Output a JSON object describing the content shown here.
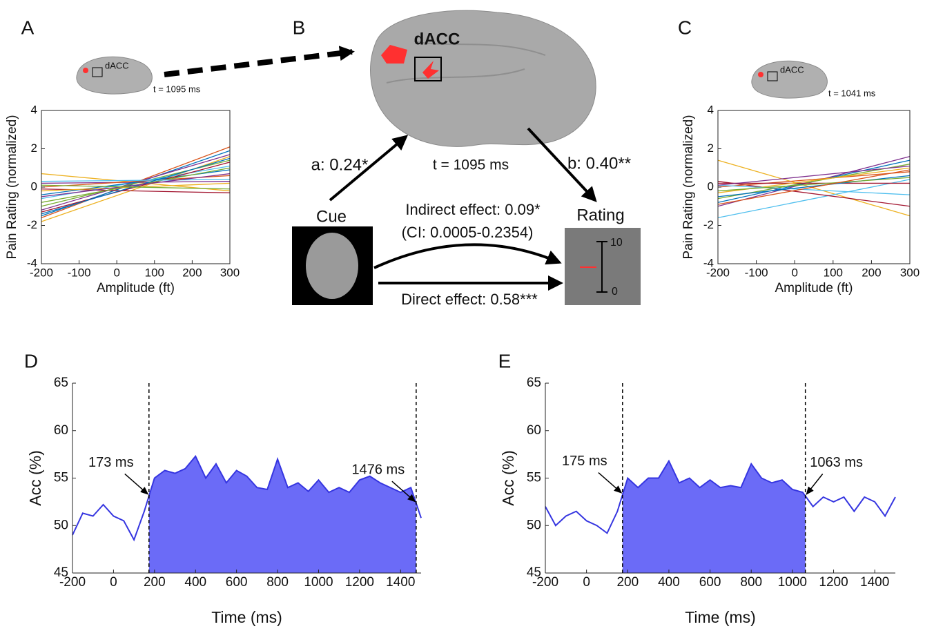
{
  "panels": [
    "A",
    "B",
    "C",
    "D",
    "E"
  ],
  "diagram": {
    "region": "dACC",
    "path_a": "a: 0.24*",
    "time": "t = 1095 ms",
    "path_b": "b: 0.40**",
    "cue": "Cue",
    "rating": "Rating",
    "indirect": "Indirect effect: 0.09*",
    "ci": "(CI: 0.0005-0.2354)",
    "direct": "Direct effect: 0.58***",
    "scale_top": "10",
    "scale_bottom": "0"
  },
  "chart_data": [
    {
      "type": "line",
      "xlabel": "Amplitude (ft)",
      "ylabel": "Pain Rating (normalized)",
      "inset_label": "dACC",
      "inset_time": "t = 1095 ms",
      "x": [
        -200,
        300
      ],
      "xlim": [
        -200,
        300
      ],
      "ylim": [
        -4,
        4
      ],
      "xticks": [
        -200,
        -100,
        0,
        100,
        200,
        300
      ],
      "yticks": [
        -4,
        -2,
        0,
        2,
        4
      ],
      "box": true,
      "series": [
        {
          "color": "#D95319",
          "values": [
            -1.6,
            2.1
          ]
        },
        {
          "color": "#0072BD",
          "values": [
            -1.5,
            1.9
          ]
        },
        {
          "color": "#EDB120",
          "values": [
            -1.8,
            1.6
          ]
        },
        {
          "color": "#EDB120",
          "values": [
            0.7,
            -0.2
          ]
        },
        {
          "color": "#7E2F8E",
          "values": [
            -1.2,
            1.7
          ]
        },
        {
          "color": "#77AC30",
          "values": [
            -1.0,
            1.4
          ]
        },
        {
          "color": "#4DBEEE",
          "values": [
            -0.6,
            1.1
          ]
        },
        {
          "color": "#7E2F8E",
          "values": [
            0.2,
            0.3
          ]
        },
        {
          "color": "#A2142F",
          "values": [
            -0.1,
            -0.3
          ]
        },
        {
          "color": "#0072BD",
          "values": [
            -0.4,
            0.9
          ]
        },
        {
          "color": "#D95319",
          "values": [
            0.0,
            0.6
          ]
        },
        {
          "color": "#A2142F",
          "values": [
            -1.3,
            1.3
          ]
        },
        {
          "color": "#77AC30",
          "values": [
            -0.8,
            1.0
          ]
        },
        {
          "color": "#EDB120",
          "values": [
            -0.2,
            0.2
          ]
        },
        {
          "color": "#4DBEEE",
          "values": [
            0.3,
            0.4
          ]
        },
        {
          "color": "#0072BD",
          "values": [
            -1.4,
            1.5
          ]
        },
        {
          "color": "#7E2F8E",
          "values": [
            -0.5,
            0.7
          ]
        },
        {
          "color": "#77AC30",
          "values": [
            0.1,
            -0.1
          ]
        }
      ]
    },
    {
      "type": "line",
      "xlabel": "Amplitude (ft)",
      "ylabel": "Pain Rating (normalized)",
      "inset_label": "dACC",
      "inset_time": "t = 1041 ms",
      "x": [
        -200,
        300
      ],
      "xlim": [
        -200,
        300
      ],
      "ylim": [
        -4,
        4
      ],
      "xticks": [
        -200,
        -100,
        0,
        100,
        200,
        300
      ],
      "yticks": [
        -4,
        -2,
        0,
        2,
        4
      ],
      "box": true,
      "series": [
        {
          "color": "#EDB120",
          "values": [
            1.4,
            -1.5
          ]
        },
        {
          "color": "#4DBEEE",
          "values": [
            -1.6,
            0.4
          ]
        },
        {
          "color": "#A2142F",
          "values": [
            0.3,
            -1.0
          ]
        },
        {
          "color": "#7E2F8E",
          "values": [
            -1.0,
            1.6
          ]
        },
        {
          "color": "#0072BD",
          "values": [
            -0.8,
            1.4
          ]
        },
        {
          "color": "#77AC30",
          "values": [
            -0.6,
            1.2
          ]
        },
        {
          "color": "#D95319",
          "values": [
            0.0,
            0.8
          ]
        },
        {
          "color": "#A2142F",
          "values": [
            0.2,
            0.2
          ]
        },
        {
          "color": "#EDB120",
          "values": [
            -0.3,
            1.0
          ]
        },
        {
          "color": "#4DBEEE",
          "values": [
            0.1,
            -0.4
          ]
        },
        {
          "color": "#0072BD",
          "values": [
            -0.5,
            0.6
          ]
        },
        {
          "color": "#7E2F8E",
          "values": [
            0.1,
            1.1
          ]
        },
        {
          "color": "#77AC30",
          "values": [
            -0.2,
            0.5
          ]
        },
        {
          "color": "#D95319",
          "values": [
            -0.9,
            0.9
          ]
        }
      ]
    },
    {
      "type": "area",
      "xlabel": "Time (ms)",
      "ylabel": "Acc (%)",
      "box": false,
      "shade_color": "#6b6bf7",
      "x": [
        -200,
        -150,
        -100,
        -50,
        0,
        50,
        100,
        150,
        200,
        250,
        300,
        350,
        400,
        450,
        500,
        550,
        600,
        650,
        700,
        750,
        800,
        850,
        900,
        950,
        1000,
        1050,
        1100,
        1150,
        1200,
        1250,
        1300,
        1350,
        1400,
        1450,
        1500
      ],
      "xlim": [
        -200,
        1500
      ],
      "ylim": [
        45,
        65
      ],
      "xticks": [
        -200,
        0,
        200,
        400,
        600,
        800,
        1000,
        1200,
        1400
      ],
      "yticks": [
        45,
        50,
        55,
        60,
        65
      ],
      "series": [
        {
          "color": "#3535e0",
          "values": [
            49,
            51.3,
            51,
            52.2,
            51,
            50.5,
            48.5,
            51.5,
            55,
            55.8,
            55.5,
            56,
            57.3,
            55,
            56.5,
            54.5,
            55.8,
            55.2,
            54,
            53.8,
            57,
            54,
            54.5,
            53.6,
            54.8,
            53.5,
            54,
            53.5,
            54.8,
            55.2,
            54.5,
            54,
            53.5,
            54,
            50.8
          ]
        }
      ],
      "annotations": [
        {
          "value": 173,
          "label": "173 ms"
        },
        {
          "value": 1476,
          "label": "1476 ms"
        }
      ]
    },
    {
      "type": "area",
      "xlabel": "Time (ms)",
      "ylabel": "Acc (%)",
      "box": false,
      "shade_color": "#6b6bf7",
      "x": [
        -200,
        -150,
        -100,
        -50,
        0,
        50,
        100,
        150,
        200,
        250,
        300,
        350,
        400,
        450,
        500,
        550,
        600,
        650,
        700,
        750,
        800,
        850,
        900,
        950,
        1000,
        1050,
        1100,
        1150,
        1200,
        1250,
        1300,
        1350,
        1400,
        1450,
        1500
      ],
      "xlim": [
        -200,
        1500
      ],
      "ylim": [
        45,
        65
      ],
      "xticks": [
        -200,
        0,
        200,
        400,
        600,
        800,
        1000,
        1200,
        1400
      ],
      "yticks": [
        45,
        50,
        55,
        60,
        65
      ],
      "series": [
        {
          "color": "#3535e0",
          "values": [
            52,
            50,
            51,
            51.5,
            50.5,
            50,
            49.2,
            51.5,
            55,
            54,
            55,
            55,
            56.8,
            54.5,
            55,
            54,
            54.8,
            54,
            54.2,
            54,
            56.5,
            55,
            54.5,
            54.8,
            53.8,
            53.5,
            52,
            53,
            52.5,
            53,
            51.5,
            53,
            52.5,
            51,
            53
          ]
        }
      ],
      "annotations": [
        {
          "value": 175,
          "label": "175 ms"
        },
        {
          "value": 1063,
          "label": "1063 ms"
        }
      ]
    }
  ]
}
